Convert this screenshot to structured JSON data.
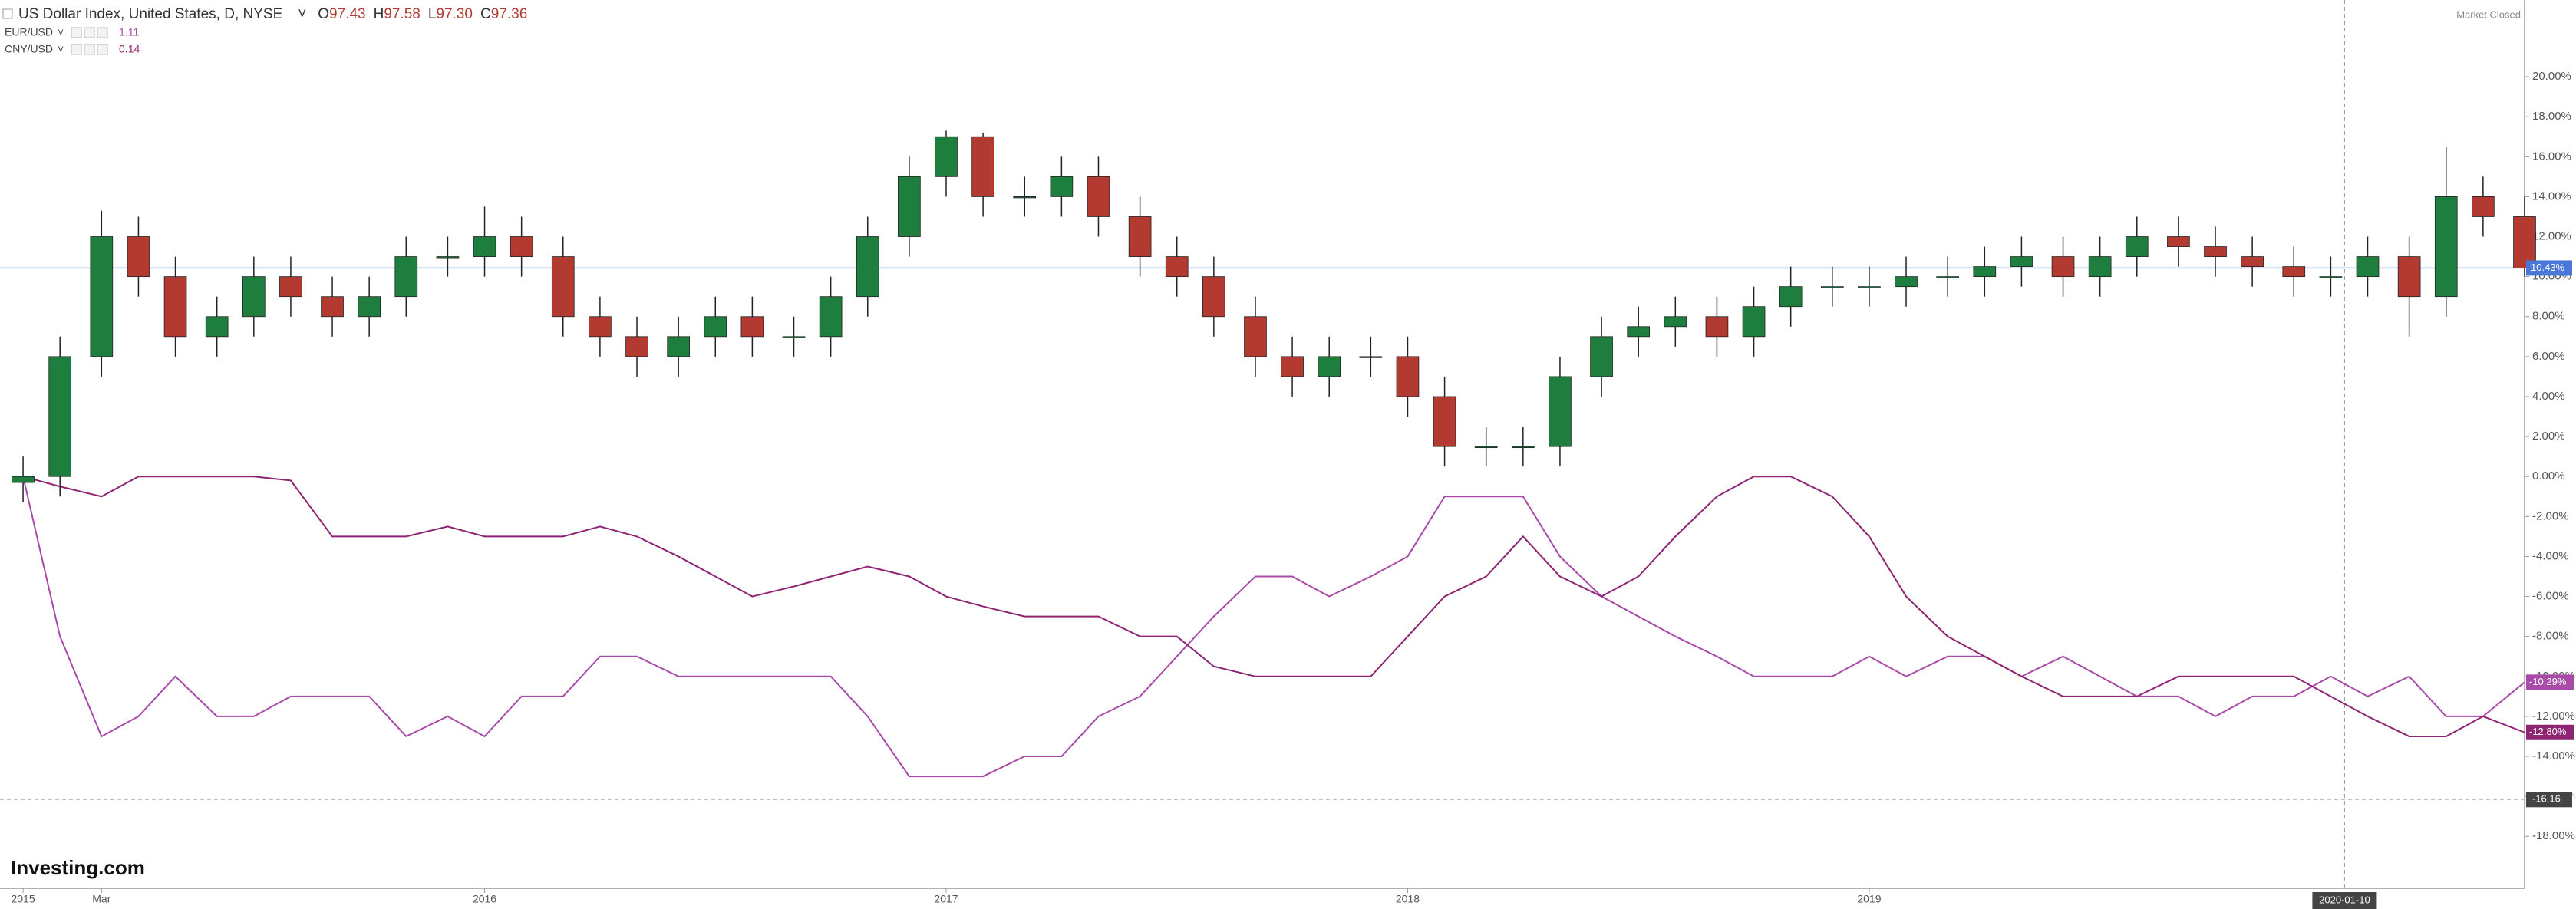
{
  "chart_data": {
    "type": "candlestick",
    "title": "US Dollar Index, United States, D, NYSE",
    "ohlc_letters": [
      "O",
      "H",
      "L",
      "C"
    ],
    "ohlc": [
      97.43,
      97.58,
      {
        "value": 97.3,
        "label": "97.30"
      },
      97.36
    ],
    "status": "Market Closed",
    "source": "Investing.com",
    "xlim": [
      2014.95,
      2020.42
    ],
    "ylim": [
      -20.6,
      23.84
    ],
    "grid": false,
    "xticks": [
      {
        "value": 2015,
        "label": "2015"
      },
      {
        "value": 2015.17,
        "label": "Mar"
      },
      2016,
      2017,
      2018,
      2019
    ],
    "crosshair": {
      "value": 2020.03,
      "label": "2020-01-10"
    },
    "reference_line": {
      "value": -16.16,
      "label": "-16.16"
    },
    "yticks": [
      {
        "value": 20,
        "label": "20.00%"
      },
      {
        "value": 18,
        "label": "18.00%"
      },
      {
        "value": 16,
        "label": "16.00%"
      },
      {
        "value": 14,
        "label": "14.00%"
      },
      {
        "value": 12,
        "label": "12.00%"
      },
      {
        "value": 10,
        "label": "10.00%"
      },
      {
        "value": 8,
        "label": "8.00%"
      },
      {
        "value": 6,
        "label": "6.00%"
      },
      {
        "value": 4,
        "label": "4.00%"
      },
      {
        "value": 2,
        "label": "2.00%"
      },
      {
        "value": 0,
        "label": "0.00%"
      },
      {
        "value": -2,
        "label": "-2.00%"
      },
      {
        "value": -4,
        "label": "-4.00%"
      },
      {
        "value": -6,
        "label": "-6.00%"
      },
      {
        "value": -8,
        "label": "-8.00%"
      },
      {
        "value": -10,
        "label": "-10.00%"
      },
      {
        "value": -12,
        "label": "-12.00%"
      },
      {
        "value": -14,
        "label": "-14.00%"
      },
      {
        "value": -16,
        "label": "-16.00%"
      },
      {
        "value": -18,
        "label": "-18.00%"
      }
    ],
    "x": [
      2015.0,
      2015.08,
      2015.17,
      2015.25,
      2015.33,
      2015.42,
      2015.5,
      2015.58,
      2015.67,
      2015.75,
      2015.83,
      2015.92,
      2016.0,
      2016.08,
      2016.17,
      2016.25,
      2016.33,
      2016.42,
      2016.5,
      2016.58,
      2016.67,
      2016.75,
      2016.83,
      2016.92,
      2017.0,
      2017.08,
      2017.17,
      2017.25,
      2017.33,
      2017.42,
      2017.5,
      2017.58,
      2017.67,
      2017.75,
      2017.83,
      2017.92,
      2018.0,
      2018.08,
      2018.17,
      2018.25,
      2018.33,
      2018.42,
      2018.5,
      2018.58,
      2018.67,
      2018.75,
      2018.83,
      2018.92,
      2019.0,
      2019.08,
      2019.17,
      2019.25,
      2019.33,
      2019.42,
      2019.5,
      2019.58,
      2019.67,
      2019.75,
      2019.83,
      2019.92,
      2020.0,
      2020.08,
      2020.17,
      2020.25,
      2020.33,
      2020.42
    ],
    "candles": {
      "up_color": "#1e7e3e",
      "down_color": "#b23a30",
      "last_color": "#4a78d6",
      "last_label": "10.43%",
      "open": [
        -0.3,
        0,
        6,
        12,
        10,
        7,
        8,
        10,
        9,
        8,
        9,
        11,
        11,
        12,
        11,
        8,
        7,
        6,
        7,
        8,
        7,
        7,
        9,
        12,
        15,
        17,
        14,
        14,
        15,
        13,
        11,
        10,
        8,
        6,
        5,
        6,
        6,
        4,
        1.5,
        1.5,
        1.5,
        5,
        7,
        7.5,
        8,
        7,
        8.5,
        9.5,
        9.5,
        9.5,
        10,
        10,
        10.5,
        11,
        10,
        11,
        12,
        11.5,
        11,
        10.5,
        10,
        10,
        11,
        9,
        14,
        13
      ],
      "high": [
        1,
        7,
        13.3,
        13,
        11,
        9,
        11,
        11,
        10,
        10,
        12,
        12,
        13.5,
        13,
        12,
        9,
        8,
        8,
        9,
        9,
        8,
        10,
        13,
        16,
        17.3,
        17.2,
        15,
        16,
        16,
        14,
        12,
        11,
        9,
        7,
        7,
        7,
        7,
        5,
        2.5,
        2.5,
        6,
        8,
        8.5,
        9,
        9,
        9.5,
        10.5,
        10.5,
        10.5,
        11,
        11,
        11.5,
        12,
        12,
        12,
        13,
        13,
        12.5,
        12,
        11.5,
        11,
        12,
        12,
        16.5,
        15,
        14
      ],
      "low": [
        -1.3,
        -1,
        5,
        9,
        6,
        6,
        7,
        8,
        7,
        7,
        8,
        10,
        10,
        10,
        7,
        6,
        5,
        5,
        6,
        6,
        6,
        6,
        8,
        11,
        14,
        13,
        13,
        13,
        12,
        10,
        9,
        7,
        5,
        4,
        4,
        5,
        3,
        0.5,
        0.5,
        0.5,
        0.5,
        4,
        6,
        6.5,
        6,
        6,
        7.5,
        8.5,
        8.5,
        8.5,
        9,
        9,
        9.5,
        9,
        9,
        10,
        10.5,
        10,
        9.5,
        9,
        9,
        9,
        7,
        8,
        12,
        10
      ],
      "close": [
        0,
        6,
        12,
        10,
        7,
        8,
        10,
        9,
        8,
        9,
        11,
        11,
        12,
        11,
        8,
        7,
        6,
        7,
        8,
        7,
        7,
        9,
        12,
        15,
        17,
        14,
        14,
        15,
        13,
        11,
        10,
        8,
        6,
        5,
        6,
        6,
        4,
        1.5,
        1.5,
        1.5,
        5,
        7,
        7.5,
        8,
        7,
        8.5,
        9.5,
        9.5,
        9.5,
        10,
        10,
        10.5,
        11,
        10,
        11,
        12,
        11.5,
        11,
        10.5,
        10,
        10,
        11,
        9,
        14,
        13,
        10.43
      ]
    },
    "series": [
      {
        "name": "EUR/USD",
        "legend_value": 1.11,
        "color": "#a94aa9",
        "last_label": "-10.29%",
        "values": [
          0,
          -8,
          -13,
          -12,
          -10,
          -12,
          -12,
          -11,
          -11,
          -11,
          -13,
          -12,
          -13,
          -11,
          -11,
          -9,
          -9,
          -10,
          -10,
          -10,
          -10,
          -10,
          -12,
          -15,
          -15,
          -15,
          -14,
          -14,
          -12,
          -11,
          -9,
          -7,
          -5,
          -5,
          -6,
          -5,
          -4,
          -1,
          -1,
          -1,
          -4,
          -6,
          -7,
          -8,
          -9,
          -10,
          -10,
          -10,
          -9,
          -10,
          -9,
          -9,
          -10,
          -9,
          -10,
          -11,
          -11,
          -12,
          -11,
          -11,
          -10,
          -11,
          -10,
          -12,
          -12,
          -10.29
        ]
      },
      {
        "name": "CNY/USD",
        "legend_value": 0.14,
        "color": "#8e2472",
        "last_label": "-12.80%",
        "values": [
          0,
          -0.5,
          -1,
          0,
          0,
          0,
          0,
          -0.2,
          -3,
          -3,
          -3,
          -2.5,
          -3,
          -3,
          -3,
          -2.5,
          -3,
          -4,
          -5,
          -6,
          -5.5,
          -5,
          -4.5,
          -5,
          -6,
          -6.5,
          -7,
          -7,
          -7,
          -8,
          -8,
          -9.5,
          -10,
          -10,
          -10,
          -10,
          -8,
          -6,
          -5,
          -3,
          -5,
          -6,
          -5,
          -3,
          -1,
          0,
          0,
          -1,
          -3,
          -6,
          -8,
          -9,
          -10,
          -11,
          -11,
          -11,
          -10,
          -10,
          -10,
          -10,
          -11,
          -12,
          -13,
          -13,
          -12,
          -12.8
        ]
      }
    ]
  }
}
